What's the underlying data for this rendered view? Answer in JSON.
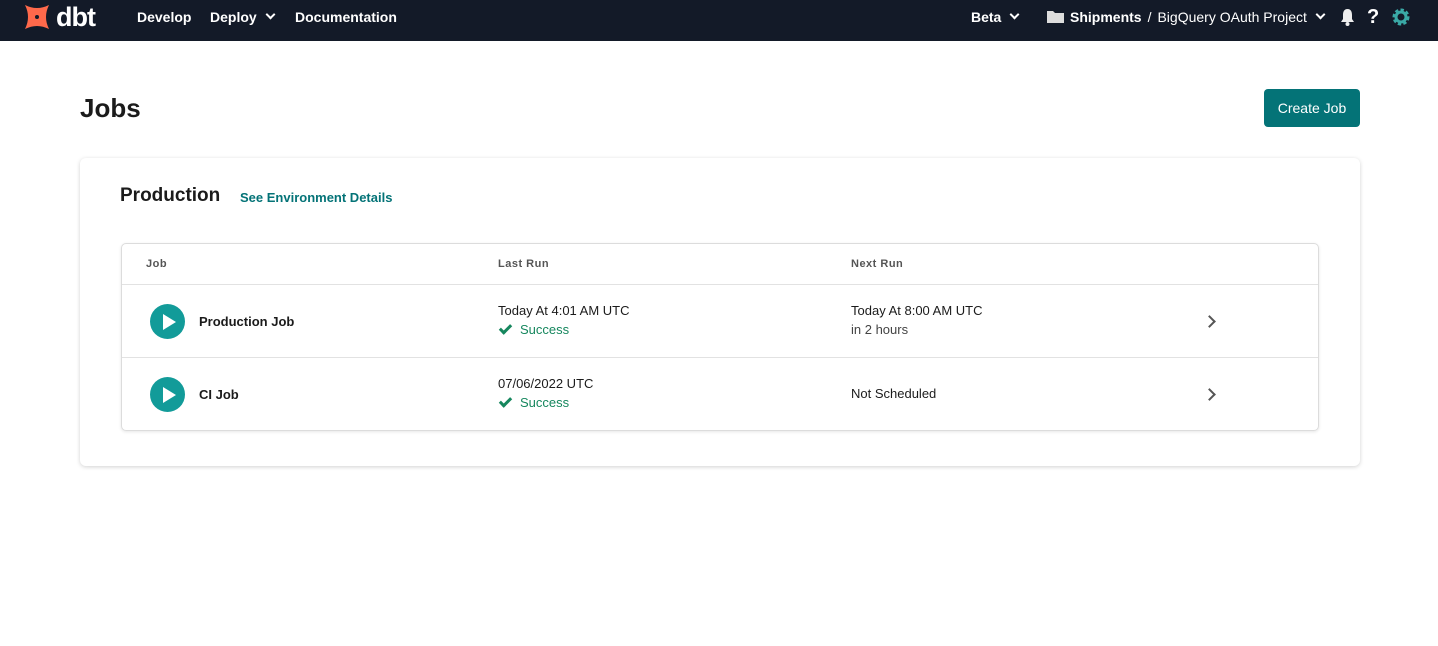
{
  "nav": {
    "brand": "dbt",
    "items": [
      {
        "label": "Develop"
      },
      {
        "label": "Deploy"
      },
      {
        "label": "Documentation"
      }
    ],
    "beta": "Beta",
    "account": "Shipments",
    "separator": "/",
    "project": "BigQuery OAuth Project"
  },
  "page": {
    "title": "Jobs",
    "create_label": "Create Job"
  },
  "environment": {
    "name": "Production",
    "link_label": "See Environment Details"
  },
  "table": {
    "headers": [
      "Job",
      "Last Run",
      "Next Run"
    ],
    "rows": [
      {
        "job": "Production Job",
        "last_run": "Today At 4:01 AM UTC",
        "last_status": "Success",
        "next_run": "Today At 8:00 AM UTC",
        "next_sub": "in 2 hours"
      },
      {
        "job": "CI Job",
        "last_run": "07/06/2022 UTC",
        "last_status": "Success",
        "next_run": "Not Scheduled",
        "next_sub": ""
      }
    ]
  },
  "colors": {
    "nav_bg": "#131a28",
    "accent": "#047377",
    "success": "#16875e",
    "logo": "#ff694b"
  }
}
